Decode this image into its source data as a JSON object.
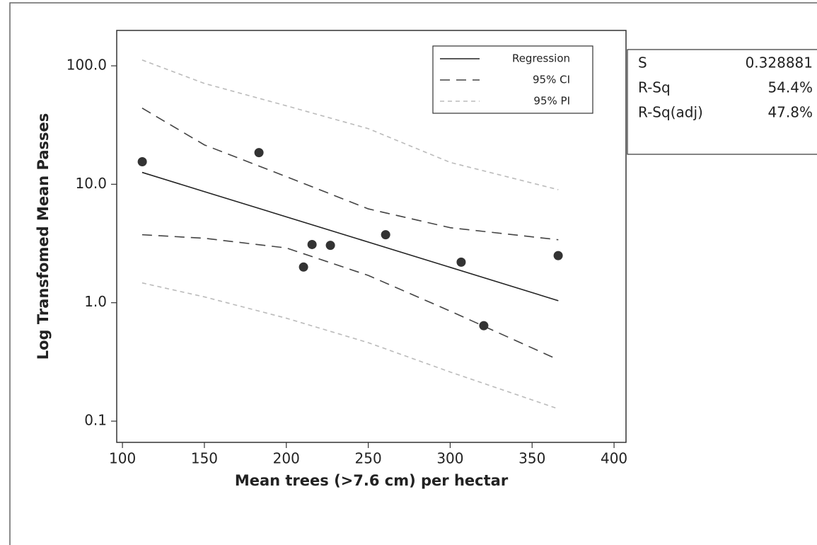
{
  "chart_data": {
    "type": "fitted-line",
    "x_label": "Mean trees (>7.6 cm) per hectar",
    "y_label": "Log Transfomed Mean Passes",
    "xlim": [
      96.5,
      407.3
    ],
    "xticks": [
      100,
      150,
      200,
      250,
      300,
      350,
      400
    ],
    "ylim": [
      0.0662,
      199
    ],
    "y_scale": "log",
    "yticks": [
      {
        "value": 100,
        "label": "100.0"
      },
      {
        "value": 10,
        "label": "10.0"
      },
      {
        "value": 1,
        "label": "1.0"
      },
      {
        "value": 0.1,
        "label": "0.1"
      }
    ],
    "legend_position": "top-right",
    "x": [
      112,
      150,
      200,
      250,
      300,
      366
    ],
    "series": [
      {
        "name": "Regression",
        "color": "#222222",
        "linestyle": "solid",
        "values": [
          12.6,
          8.67,
          5.31,
          3.25,
          1.99,
          1.04
        ]
      },
      {
        "name": "95% CI",
        "color": "#444444",
        "linestyle": "dashed",
        "values": [
          44,
          21.5,
          11.6,
          6.2,
          4.3,
          3.4
        ]
      },
      {
        "name": "95% PI",
        "color": "#bbbbbb",
        "linestyle": "dotted",
        "values": [
          112,
          71,
          46,
          29.5,
          15.3,
          9.0
        ]
      },
      {
        "name": "95% CI",
        "color": "#444444",
        "linestyle": "dashed",
        "values": [
          3.75,
          3.5,
          2.9,
          1.7,
          0.85,
          0.33
        ]
      },
      {
        "name": "95% PI",
        "color": "#bbbbbb",
        "linestyle": "dotted",
        "values": [
          1.47,
          1.12,
          0.74,
          0.46,
          0.26,
          0.127
        ]
      }
    ],
    "points": {
      "color": "#333333",
      "x": [
        112.1,
        183.3,
        210.5,
        215.7,
        226.9,
        260.6,
        306.7,
        320.5,
        365.9
      ],
      "y": [
        15.5,
        18.5,
        2.0,
        3.1,
        3.05,
        3.75,
        2.2,
        0.64,
        2.5
      ]
    },
    "stats": [
      [
        "S",
        "0.328881"
      ],
      [
        "R-Sq",
        "54.4%"
      ],
      [
        "R-Sq(adj)",
        "47.8%"
      ]
    ]
  }
}
